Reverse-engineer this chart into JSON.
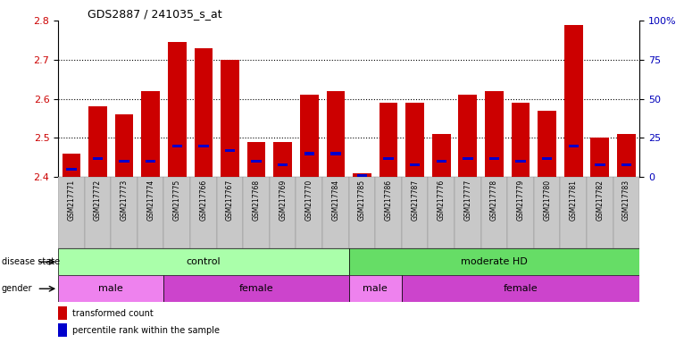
{
  "title": "GDS2887 / 241035_s_at",
  "samples": [
    "GSM217771",
    "GSM217772",
    "GSM217773",
    "GSM217774",
    "GSM217775",
    "GSM217766",
    "GSM217767",
    "GSM217768",
    "GSM217769",
    "GSM217770",
    "GSM217784",
    "GSM217785",
    "GSM217786",
    "GSM217787",
    "GSM217776",
    "GSM217777",
    "GSM217778",
    "GSM217779",
    "GSM217780",
    "GSM217781",
    "GSM217782",
    "GSM217783"
  ],
  "red_values": [
    2.46,
    2.58,
    2.56,
    2.62,
    2.745,
    2.73,
    2.7,
    2.49,
    2.49,
    2.61,
    2.62,
    2.41,
    2.59,
    2.59,
    2.51,
    2.61,
    2.62,
    2.59,
    2.57,
    2.79,
    2.5,
    2.51
  ],
  "blue_percentiles": [
    5,
    12,
    10,
    10,
    20,
    20,
    17,
    10,
    8,
    15,
    15,
    1,
    12,
    8,
    10,
    12,
    12,
    10,
    12,
    20,
    8,
    8
  ],
  "y_min": 2.4,
  "y_max": 2.8,
  "y_ticks_left": [
    2.4,
    2.5,
    2.6,
    2.7,
    2.8
  ],
  "y_ticks_right": [
    0,
    25,
    50,
    75,
    100
  ],
  "disease_state_groups": [
    {
      "label": "control",
      "start": 0,
      "end": 11,
      "color": "#AAFFAA"
    },
    {
      "label": "moderate HD",
      "start": 11,
      "end": 22,
      "color": "#66DD66"
    }
  ],
  "gender_groups": [
    {
      "label": "male",
      "start": 0,
      "end": 4,
      "color": "#EE82EE"
    },
    {
      "label": "female",
      "start": 4,
      "end": 11,
      "color": "#CC44CC"
    },
    {
      "label": "male",
      "start": 11,
      "end": 13,
      "color": "#EE82EE"
    },
    {
      "label": "female",
      "start": 13,
      "end": 22,
      "color": "#CC44CC"
    }
  ],
  "bar_color": "#CC0000",
  "marker_color": "#0000CC",
  "bg_color": "#C8C8C8",
  "axis_left_color": "#CC0000",
  "axis_right_color": "#0000BB",
  "label_left_color": "#333333"
}
